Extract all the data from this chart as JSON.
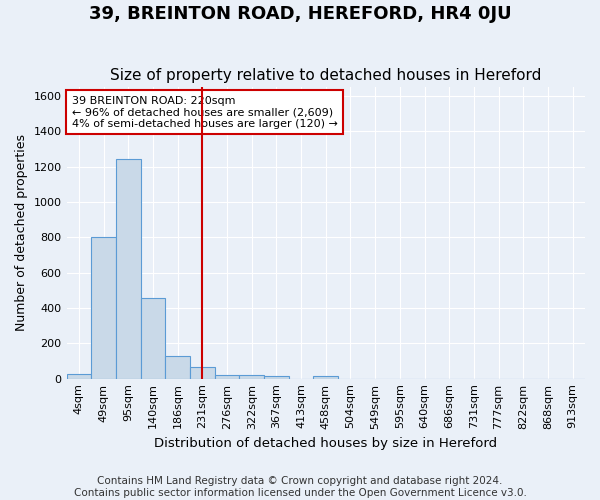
{
  "title": "39, BREINTON ROAD, HEREFORD, HR4 0JU",
  "subtitle": "Size of property relative to detached houses in Hereford",
  "xlabel": "Distribution of detached houses by size in Hereford",
  "ylabel": "Number of detached properties",
  "footer_line1": "Contains HM Land Registry data © Crown copyright and database right 2024.",
  "footer_line2": "Contains public sector information licensed under the Open Government Licence v3.0.",
  "bin_labels": [
    "4sqm",
    "49sqm",
    "95sqm",
    "140sqm",
    "186sqm",
    "231sqm",
    "276sqm",
    "322sqm",
    "367sqm",
    "413sqm",
    "458sqm",
    "504sqm",
    "549sqm",
    "595sqm",
    "640sqm",
    "686sqm",
    "731sqm",
    "777sqm",
    "822sqm",
    "868sqm",
    "913sqm"
  ],
  "bar_values": [
    25,
    800,
    1240,
    455,
    130,
    65,
    20,
    20,
    15,
    0,
    15,
    0,
    0,
    0,
    0,
    0,
    0,
    0,
    0,
    0,
    0
  ],
  "bar_color": "#c9d9e8",
  "bar_edge_color": "#5b9bd5",
  "red_line_index": 5,
  "annotation_text": "39 BREINTON ROAD: 220sqm\n← 96% of detached houses are smaller (2,609)\n4% of semi-detached houses are larger (120) →",
  "annotation_box_color": "#ffffff",
  "annotation_box_edge": "#cc0000",
  "ylim": [
    0,
    1650
  ],
  "yticks": [
    0,
    200,
    400,
    600,
    800,
    1000,
    1200,
    1400,
    1600
  ],
  "background_color": "#eaf0f8",
  "grid_color": "#ffffff",
  "title_fontsize": 13,
  "subtitle_fontsize": 11,
  "axis_label_fontsize": 9,
  "tick_fontsize": 8,
  "footer_fontsize": 7.5
}
